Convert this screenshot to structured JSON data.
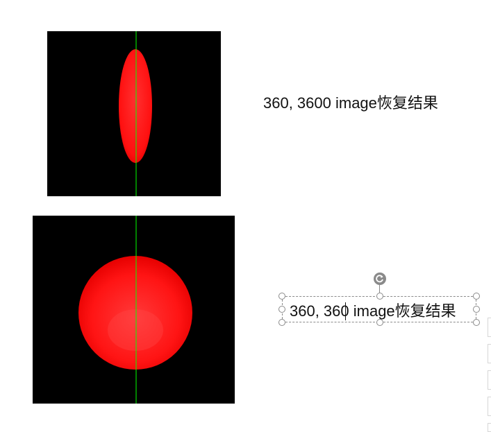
{
  "slide": {
    "captions": [
      {
        "text": "360, 3600 image恢复结果"
      },
      {
        "text": "360, 360 image恢复结果"
      }
    ],
    "images": [
      {
        "description_icon": "red-ellipse-image",
        "axis_color": "#00ff00",
        "fill_color": "#ff1a1a"
      },
      {
        "description_icon": "red-sphere-image",
        "axis_color": "#00ff00",
        "fill_color": "#ff1a1a"
      }
    ]
  }
}
